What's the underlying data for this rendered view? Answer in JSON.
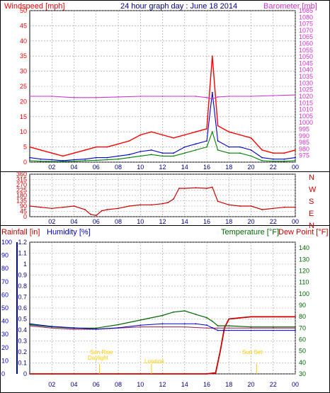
{
  "top_panel": {
    "left_title": "Windspeed [mph]",
    "center_title": "24 hour graph day : June 18 2014",
    "right_title": "Barometer [mb]"
  },
  "wind_dir_labels": [
    "N",
    "W",
    "S",
    "E",
    "N"
  ],
  "bottom_panel": {
    "rainfall_title": "Rainfall [in]",
    "humidity_title": "Humidity [%]",
    "temperature_title": "Temperature [°F]",
    "dewpoint_title": "Dew Point [°F]",
    "sun_rise_label": [
      "Sun Rise",
      "Daylight"
    ],
    "low_tide_label": "Lowtide",
    "sun_set_label": "Sun Set"
  },
  "colors": {
    "windspeed": "#ff0000",
    "avg_wind": "#0000cc",
    "gust": "#008000",
    "barometer": "#cc33cc",
    "rainfall": "#cc0000",
    "humidity": "#0000cc",
    "temperature": "#006600",
    "dewpoint": "#cc0000",
    "sun_marker": "#ffcc00"
  },
  "chart_data": [
    {
      "type": "line",
      "title": "24 hour graph day : June 18 2014",
      "x_ticks": [
        "02",
        "04",
        "06",
        "08",
        "10",
        "12",
        "14",
        "16",
        "18",
        "20",
        "22",
        "00"
      ],
      "xlim": [
        0,
        24
      ],
      "y_left": {
        "label": "Windspeed [mph]",
        "ylim": [
          0,
          50
        ],
        "ticks": [
          0,
          5,
          10,
          15,
          20,
          25,
          30,
          35,
          40,
          45,
          50
        ]
      },
      "y_right": {
        "label": "Barometer [mb]",
        "ylim": [
          970,
          1085
        ],
        "ticks": [
          975,
          980,
          985,
          990,
          995,
          1000,
          1005,
          1010,
          1015,
          1020,
          1025,
          1030,
          1035,
          1040,
          1045,
          1050,
          1055,
          1060,
          1065,
          1070,
          1075,
          1080,
          1085
        ]
      },
      "series": [
        {
          "key": "windspeed",
          "x": [
            0,
            1,
            2,
            3,
            4,
            5,
            6,
            7,
            8,
            9,
            10,
            11,
            12,
            13,
            14,
            15,
            16,
            16.5,
            17,
            18,
            19,
            20,
            21,
            22,
            23,
            24
          ],
          "values": [
            5,
            4,
            3,
            2,
            3,
            4,
            5,
            5,
            6,
            7,
            9,
            10,
            9,
            8,
            9,
            10,
            11,
            35,
            12,
            10,
            9,
            8,
            4,
            3,
            3,
            4
          ]
        },
        {
          "key": "avg_wind",
          "x": [
            0,
            1,
            2,
            3,
            4,
            5,
            6,
            7,
            8,
            9,
            10,
            11,
            12,
            13,
            14,
            15,
            16,
            16.5,
            17,
            18,
            19,
            20,
            21,
            22,
            23,
            24
          ],
          "values": [
            1.5,
            1,
            0.8,
            0.5,
            0.8,
            1,
            1.5,
            1.5,
            2,
            2.5,
            3.5,
            4,
            3,
            3,
            5,
            6,
            7,
            23,
            7,
            5,
            5,
            4,
            1.5,
            1,
            1,
            1.5
          ]
        },
        {
          "key": "gust",
          "x": [
            0,
            1,
            2,
            3,
            4,
            5,
            6,
            7,
            8,
            9,
            10,
            11,
            12,
            13,
            14,
            15,
            16,
            16.5,
            17,
            18,
            19,
            20,
            21,
            22,
            23,
            24
          ],
          "values": [
            0.5,
            0.3,
            0.2,
            0.2,
            0.3,
            0.5,
            0.6,
            0.8,
            1,
            1.5,
            2,
            2.5,
            2,
            2,
            3,
            4,
            5,
            10,
            4,
            3,
            3,
            2,
            0.5,
            0.3,
            0.3,
            0.5
          ]
        },
        {
          "key": "barometer",
          "x": [
            0,
            2,
            4,
            6,
            8,
            10,
            12,
            14,
            15,
            16,
            16.5,
            17,
            18,
            20,
            22,
            24
          ],
          "values": [
            1020,
            1020,
            1019,
            1019,
            1019.5,
            1020,
            1020,
            1020,
            1020,
            1019,
            1018,
            1019.5,
            1020,
            1020,
            1020.5,
            1021
          ]
        }
      ]
    },
    {
      "type": "line",
      "title": "",
      "x_ticks": [
        "02",
        "04",
        "06",
        "08",
        "10",
        "12",
        "14",
        "16",
        "18",
        "20",
        "22",
        "00"
      ],
      "xlim": [
        0,
        24
      ],
      "y_left": {
        "label": "",
        "ylim": [
          0,
          360
        ],
        "ticks": [
          0,
          45,
          90,
          135,
          180,
          225,
          270,
          315,
          360
        ]
      },
      "y_right_labels": [
        "N",
        "W",
        "S",
        "E",
        "N"
      ],
      "series": [
        {
          "key": "wind_direction",
          "x": [
            0,
            1,
            2,
            3,
            4,
            5,
            5.5,
            6,
            6.5,
            7,
            8,
            9,
            10,
            11,
            12,
            12.5,
            13,
            13.5,
            14,
            15,
            16,
            16.5,
            17,
            18,
            19,
            20,
            21,
            22,
            23,
            24
          ],
          "values": [
            90,
            80,
            70,
            80,
            90,
            60,
            20,
            10,
            50,
            60,
            70,
            90,
            100,
            100,
            110,
            120,
            150,
            240,
            240,
            245,
            240,
            250,
            130,
            100,
            90,
            90,
            60,
            70,
            80,
            80
          ]
        }
      ]
    },
    {
      "type": "line",
      "title": "",
      "x_ticks": [
        "02",
        "04",
        "06",
        "08",
        "10",
        "12",
        "14",
        "16",
        "18",
        "20",
        "22",
        "00"
      ],
      "xlim": [
        0,
        24
      ],
      "y_rain": {
        "label": "Rainfall [in]",
        "ylim": [
          0,
          1.2
        ],
        "ticks": [
          0,
          0.1,
          0.2,
          0.3,
          0.4,
          0.5,
          0.6,
          0.7,
          0.8,
          0.9,
          1,
          1.1,
          1.2
        ]
      },
      "y_humidity": {
        "label": "Humidity [%]",
        "ylim": [
          0,
          100
        ],
        "ticks": [
          0,
          10,
          20,
          30,
          40,
          50,
          60,
          70,
          80,
          90,
          100
        ]
      },
      "y_temp": {
        "label": "Temperature [°F] / Dew Point [°F]",
        "ylim": [
          30,
          145
        ],
        "ticks": [
          30,
          40,
          50,
          60,
          70,
          80,
          90,
          100,
          110,
          120,
          130,
          140
        ]
      },
      "series": [
        {
          "key": "rainfall",
          "axis": "rain",
          "x": [
            0,
            2,
            4,
            6,
            8,
            10,
            12,
            14,
            16,
            16.8,
            17.2,
            17.6,
            18,
            19,
            20,
            21,
            22,
            23,
            24
          ],
          "values": [
            0,
            0,
            0,
            0,
            0,
            0,
            0,
            0,
            0,
            0.01,
            0.2,
            0.42,
            0.5,
            0.51,
            0.52,
            0.52,
            0.52,
            0.52,
            0.52
          ]
        },
        {
          "key": "humidity",
          "axis": "humidity",
          "x": [
            0,
            2,
            4,
            6,
            8,
            10,
            12,
            14,
            15,
            16,
            16.5,
            17,
            17.5,
            18,
            20,
            22,
            24
          ],
          "values": [
            38,
            36,
            35,
            34,
            35,
            37,
            38,
            38,
            38,
            37,
            35,
            33,
            33,
            33,
            33,
            33,
            33
          ]
        },
        {
          "key": "temperature",
          "axis": "temp",
          "x": [
            0,
            2,
            4,
            6,
            8,
            10,
            12,
            13,
            14,
            15,
            16,
            16.5,
            17,
            18,
            20,
            22,
            24
          ],
          "values": [
            73,
            71,
            70,
            70,
            73,
            77,
            81,
            84,
            85,
            82,
            79,
            76,
            72,
            72,
            71,
            71,
            71
          ]
        },
        {
          "key": "dewpoint",
          "axis": "temp",
          "x": [
            0,
            2,
            4,
            6,
            8,
            10,
            12,
            14,
            16,
            16.5,
            17,
            18,
            20,
            22,
            24
          ],
          "values": [
            72,
            70,
            69,
            69,
            70,
            71,
            71,
            71,
            70,
            70,
            70,
            70,
            70,
            70,
            70
          ]
        }
      ],
      "markers": [
        {
          "key": "sun_rise",
          "x": 6.3
        },
        {
          "key": "low_tide",
          "x": 11
        },
        {
          "key": "sun_set",
          "x": 20.5
        }
      ]
    }
  ]
}
